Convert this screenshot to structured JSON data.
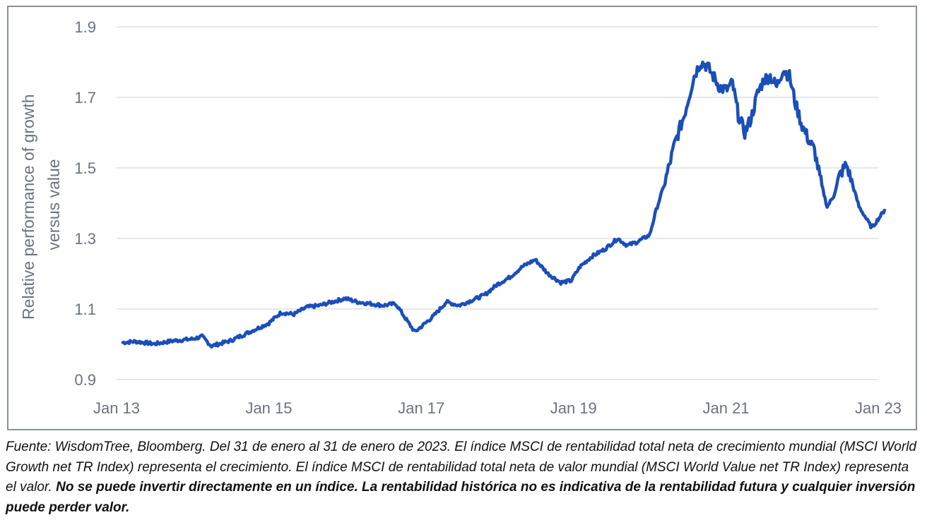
{
  "chart_data": {
    "type": "line",
    "title": "",
    "ylabel": "Relative performance of growth versus value",
    "ylabel_lines": [
      "Relative performance of growth",
      "versus value"
    ],
    "xlabel": "",
    "ylim": [
      0.9,
      1.9
    ],
    "xlim": [
      "2013-01-31",
      "2023-01-31"
    ],
    "y_ticks": [
      0.9,
      1.1,
      1.3,
      1.5,
      1.7,
      1.9
    ],
    "y_tick_labels": [
      "0.9",
      "1.1",
      "1.3",
      "1.5",
      "1.7",
      "1.9"
    ],
    "x_ticks": [
      "2013-01-01",
      "2015-01-01",
      "2017-01-01",
      "2019-01-01",
      "2021-01-01",
      "2023-01-01"
    ],
    "x_tick_labels": [
      "Jan 13",
      "Jan 15",
      "Jan 17",
      "Jan 19",
      "Jan 21",
      "Jan 23"
    ],
    "grid": "horizontal",
    "line_color": "#1b4fb8",
    "series": [
      {
        "name": "",
        "x": [
          "2013-01-31",
          "2013-04-01",
          "2013-07-01",
          "2013-10-01",
          "2014-01-01",
          "2014-02-15",
          "2014-04-01",
          "2014-07-01",
          "2014-10-01",
          "2015-01-01",
          "2015-03-01",
          "2015-05-01",
          "2015-07-01",
          "2015-09-01",
          "2015-11-01",
          "2016-01-01",
          "2016-03-01",
          "2016-05-01",
          "2016-07-01",
          "2016-09-01",
          "2016-11-01",
          "2016-12-01",
          "2017-01-01",
          "2017-03-01",
          "2017-05-01",
          "2017-07-01",
          "2017-09-01",
          "2017-11-01",
          "2018-01-01",
          "2018-03-01",
          "2018-05-01",
          "2018-07-01",
          "2018-09-01",
          "2018-11-01",
          "2018-12-20",
          "2019-02-01",
          "2019-04-01",
          "2019-06-01",
          "2019-08-01",
          "2019-09-15",
          "2019-11-01",
          "2020-01-01",
          "2020-02-01",
          "2020-03-15",
          "2020-05-01",
          "2020-06-15",
          "2020-08-01",
          "2020-09-01",
          "2020-10-01",
          "2020-11-01",
          "2020-12-01",
          "2021-01-01",
          "2021-02-01",
          "2021-03-01",
          "2021-04-01",
          "2021-05-01",
          "2021-06-01",
          "2021-07-01",
          "2021-08-01",
          "2021-09-01",
          "2021-10-01",
          "2021-11-01",
          "2021-12-01",
          "2022-01-01",
          "2022-02-01",
          "2022-03-01",
          "2022-04-01",
          "2022-05-01",
          "2022-06-01",
          "2022-07-01",
          "2022-08-01",
          "2022-09-01",
          "2022-10-01",
          "2022-11-01",
          "2022-12-01",
          "2023-01-31"
        ],
        "y": [
          1.005,
          1.008,
          1.001,
          1.01,
          1.015,
          1.022,
          0.995,
          1.01,
          1.035,
          1.06,
          1.09,
          1.085,
          1.105,
          1.11,
          1.12,
          1.13,
          1.12,
          1.115,
          1.11,
          1.115,
          1.06,
          1.035,
          1.05,
          1.08,
          1.12,
          1.11,
          1.125,
          1.14,
          1.17,
          1.19,
          1.22,
          1.24,
          1.2,
          1.175,
          1.18,
          1.22,
          1.25,
          1.27,
          1.3,
          1.28,
          1.29,
          1.31,
          1.38,
          1.46,
          1.57,
          1.65,
          1.76,
          1.8,
          1.79,
          1.76,
          1.73,
          1.72,
          1.74,
          1.65,
          1.6,
          1.64,
          1.71,
          1.75,
          1.76,
          1.73,
          1.78,
          1.76,
          1.68,
          1.62,
          1.58,
          1.55,
          1.46,
          1.39,
          1.42,
          1.48,
          1.51,
          1.45,
          1.39,
          1.36,
          1.33,
          1.38
        ]
      }
    ]
  },
  "caption": {
    "normal_text": "Fuente: WisdomTree, Bloomberg. Del 31 de enero al 31 de enero de 2023. El índice MSCI de rentabilidad total neta de crecimiento mundial (MSCI World Growth net TR Index) representa el crecimiento. El índice MSCI de rentabilidad total neta de valor mundial (MSCI World Value net TR Index) representa el valor. ",
    "bold_text": "No se puede invertir directamente en un índice. La rentabilidad histórica no es indicativa de la rentabilidad futura y cualquier inversión puede perder valor."
  }
}
